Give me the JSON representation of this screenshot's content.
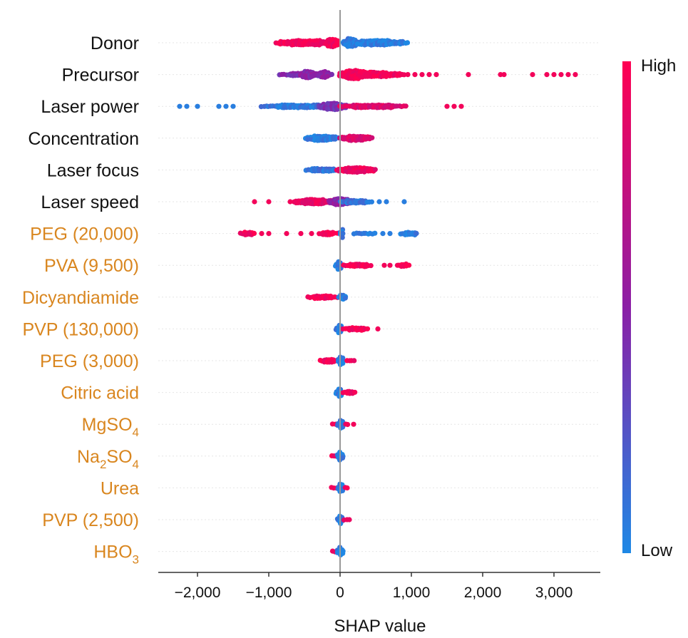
{
  "chart_data": {
    "type": "scatter",
    "subtype": "shap-beeswarm",
    "xlabel": "SHAP value",
    "xlim": [
      -2500,
      3600
    ],
    "xticks": [
      -2000,
      -1000,
      0,
      1000,
      2000,
      3000
    ],
    "xtick_labels": [
      "−2,000",
      "−1,000",
      "0",
      "1,000",
      "2,000",
      "3,000"
    ],
    "colorbar": {
      "high_label": "High",
      "low_label": "Low",
      "high_color": "#ff0052",
      "mid_color": "#8b1fa6",
      "low_color": "#1e88e5"
    },
    "label_colors": {
      "continuous": "#111111",
      "additive": "#d9861f"
    },
    "features": [
      {
        "name": "Donor",
        "kind": "continuous",
        "clusters": [
          {
            "from": -900,
            "to": -50,
            "feature_value": 0.95,
            "density": 3
          },
          {
            "from": -200,
            "to": -20,
            "feature_value": 0.95,
            "density": 5
          },
          {
            "from": 50,
            "to": 950,
            "feature_value": 0.05,
            "density": 3
          },
          {
            "from": 50,
            "to": 250,
            "feature_value": 0.05,
            "density": 5
          }
        ],
        "outliers": []
      },
      {
        "name": "Precursor",
        "kind": "continuous",
        "clusters": [
          {
            "from": -850,
            "to": -100,
            "feature_value": 0.45,
            "density": 2
          },
          {
            "from": -550,
            "to": -350,
            "feature_value": 0.5,
            "density": 4
          },
          {
            "from": -300,
            "to": -150,
            "feature_value": 0.5,
            "density": 4
          },
          {
            "from": 0,
            "to": 900,
            "feature_value": 0.95,
            "density": 3
          },
          {
            "from": 0,
            "to": 400,
            "feature_value": 0.95,
            "density": 5
          }
        ],
        "outliers": [
          {
            "x": 950,
            "v": 0.95
          },
          {
            "x": 1050,
            "v": 0.95
          },
          {
            "x": 1150,
            "v": 0.95
          },
          {
            "x": 1250,
            "v": 0.95
          },
          {
            "x": 1350,
            "v": 0.95
          },
          {
            "x": 1800,
            "v": 0.95
          },
          {
            "x": 2250,
            "v": 0.95
          },
          {
            "x": 2300,
            "v": 0.95
          },
          {
            "x": 2700,
            "v": 0.95
          },
          {
            "x": 2900,
            "v": 0.95
          },
          {
            "x": 3000,
            "v": 0.95
          },
          {
            "x": 3100,
            "v": 0.95
          },
          {
            "x": 3200,
            "v": 0.95
          },
          {
            "x": 3300,
            "v": 0.95
          }
        ]
      },
      {
        "name": "Laser power",
        "kind": "continuous",
        "clusters": [
          {
            "from": -1100,
            "to": 0,
            "feature_value": 0.08,
            "density": 2
          },
          {
            "from": -300,
            "to": 100,
            "feature_value": 0.4,
            "density": 4
          },
          {
            "from": 0,
            "to": 950,
            "feature_value": 0.85,
            "density": 2
          }
        ],
        "outliers": [
          {
            "x": -2250,
            "v": 0.05
          },
          {
            "x": -2150,
            "v": 0.05
          },
          {
            "x": -2000,
            "v": 0.05
          },
          {
            "x": -1700,
            "v": 0.05
          },
          {
            "x": -1600,
            "v": 0.05
          },
          {
            "x": -1500,
            "v": 0.05
          },
          {
            "x": 1500,
            "v": 0.95
          },
          {
            "x": 1600,
            "v": 0.95
          },
          {
            "x": 1700,
            "v": 0.95
          }
        ]
      },
      {
        "name": "Concentration",
        "kind": "continuous",
        "clusters": [
          {
            "from": -480,
            "to": -20,
            "feature_value": 0.05,
            "density": 3
          },
          {
            "from": 0,
            "to": 450,
            "feature_value": 0.85,
            "density": 3
          }
        ],
        "outliers": []
      },
      {
        "name": "Laser focus",
        "kind": "continuous",
        "clusters": [
          {
            "from": -480,
            "to": 0,
            "feature_value": 0.1,
            "density": 2
          },
          {
            "from": -50,
            "to": 500,
            "feature_value": 0.92,
            "density": 3
          }
        ],
        "outliers": []
      },
      {
        "name": "Laser speed",
        "kind": "continuous",
        "clusters": [
          {
            "from": -650,
            "to": -50,
            "feature_value": 0.9,
            "density": 3
          },
          {
            "from": -150,
            "to": 150,
            "feature_value": 0.5,
            "density": 4
          },
          {
            "from": 0,
            "to": 450,
            "feature_value": 0.1,
            "density": 2
          }
        ],
        "outliers": [
          {
            "x": -1200,
            "v": 0.95
          },
          {
            "x": -1000,
            "v": 0.95
          },
          {
            "x": -700,
            "v": 0.95
          },
          {
            "x": 550,
            "v": 0.05
          },
          {
            "x": 650,
            "v": 0.05
          },
          {
            "x": 900,
            "v": 0.05
          }
        ]
      },
      {
        "name": "PEG (20,000)",
        "kind": "additive",
        "clusters": [
          {
            "from": -1400,
            "to": -1200,
            "feature_value": 0.95,
            "density": 2
          },
          {
            "from": -300,
            "to": -30,
            "feature_value": 0.95,
            "density": 2
          },
          {
            "from": 0,
            "to": 50,
            "feature_value": 0.05,
            "density": 5
          },
          {
            "from": 200,
            "to": 500,
            "feature_value": 0.05,
            "density": 1
          },
          {
            "from": 850,
            "to": 1100,
            "feature_value": 0.05,
            "density": 2
          }
        ],
        "outliers": [
          {
            "x": -1100,
            "v": 0.95
          },
          {
            "x": -1000,
            "v": 0.95
          },
          {
            "x": -750,
            "v": 0.95
          },
          {
            "x": -550,
            "v": 0.95
          },
          {
            "x": -400,
            "v": 0.95
          },
          {
            "x": 600,
            "v": 0.05
          },
          {
            "x": 700,
            "v": 0.05
          }
        ]
      },
      {
        "name": "PVA (9,500)",
        "kind": "additive",
        "clusters": [
          {
            "from": -60,
            "to": 30,
            "feature_value": 0.05,
            "density": 5
          },
          {
            "from": 50,
            "to": 450,
            "feature_value": 0.95,
            "density": 2
          },
          {
            "from": 800,
            "to": 980,
            "feature_value": 0.95,
            "density": 2
          }
        ],
        "outliers": [
          {
            "x": 620,
            "v": 0.95
          },
          {
            "x": 700,
            "v": 0.95
          }
        ]
      },
      {
        "name": "Dicyandiamide",
        "kind": "additive",
        "clusters": [
          {
            "from": -450,
            "to": -30,
            "feature_value": 0.95,
            "density": 2
          },
          {
            "from": -20,
            "to": 100,
            "feature_value": 0.05,
            "density": 3
          }
        ],
        "outliers": []
      },
      {
        "name": "PVP (130,000)",
        "kind": "additive",
        "clusters": [
          {
            "from": -50,
            "to": 40,
            "feature_value": 0.05,
            "density": 5
          },
          {
            "from": 40,
            "to": 400,
            "feature_value": 0.95,
            "density": 2
          }
        ],
        "outliers": [
          {
            "x": 530,
            "v": 0.95
          }
        ]
      },
      {
        "name": "PEG (3,000)",
        "kind": "additive",
        "clusters": [
          {
            "from": -280,
            "to": -30,
            "feature_value": 0.95,
            "density": 2
          },
          {
            "from": -30,
            "to": 60,
            "feature_value": 0.05,
            "density": 5
          },
          {
            "from": 100,
            "to": 220,
            "feature_value": 0.95,
            "density": 1
          }
        ],
        "outliers": []
      },
      {
        "name": "Citric acid",
        "kind": "additive",
        "clusters": [
          {
            "from": -50,
            "to": 30,
            "feature_value": 0.05,
            "density": 5
          },
          {
            "from": 40,
            "to": 230,
            "feature_value": 0.95,
            "density": 2
          }
        ],
        "outliers": []
      },
      {
        "name": "MgSO",
        "sub": "4",
        "sub_pos": "end",
        "kind": "additive",
        "clusters": [
          {
            "from": -100,
            "to": -30,
            "feature_value": 0.95,
            "density": 1
          },
          {
            "from": -30,
            "to": 50,
            "feature_value": 0.05,
            "density": 5
          },
          {
            "from": 80,
            "to": 120,
            "feature_value": 0.95,
            "density": 1
          }
        ],
        "outliers": [
          {
            "x": 190,
            "v": 0.95
          }
        ]
      },
      {
        "name": "Na",
        "sub": "2",
        "sub_pos": "mid",
        "tail": "SO",
        "sub2": "4",
        "kind": "additive",
        "clusters": [
          {
            "from": -120,
            "to": -30,
            "feature_value": 0.95,
            "density": 1
          },
          {
            "from": -30,
            "to": 40,
            "feature_value": 0.05,
            "density": 5
          }
        ],
        "outliers": []
      },
      {
        "name": "Urea",
        "kind": "additive",
        "clusters": [
          {
            "from": -120,
            "to": -30,
            "feature_value": 0.95,
            "density": 1
          },
          {
            "from": -30,
            "to": 50,
            "feature_value": 0.05,
            "density": 5
          },
          {
            "from": 70,
            "to": 110,
            "feature_value": 0.95,
            "density": 1
          }
        ],
        "outliers": []
      },
      {
        "name": "PVP (2,500)",
        "kind": "additive",
        "clusters": [
          {
            "from": -30,
            "to": 40,
            "feature_value": 0.05,
            "density": 5
          },
          {
            "from": 60,
            "to": 130,
            "feature_value": 0.95,
            "density": 1
          }
        ],
        "outliers": []
      },
      {
        "name": "HBO",
        "sub": "3",
        "sub_pos": "end",
        "kind": "additive",
        "clusters": [
          {
            "from": -100,
            "to": -30,
            "feature_value": 0.95,
            "density": 1
          },
          {
            "from": -30,
            "to": 40,
            "feature_value": 0.05,
            "density": 5
          }
        ],
        "outliers": []
      }
    ]
  }
}
